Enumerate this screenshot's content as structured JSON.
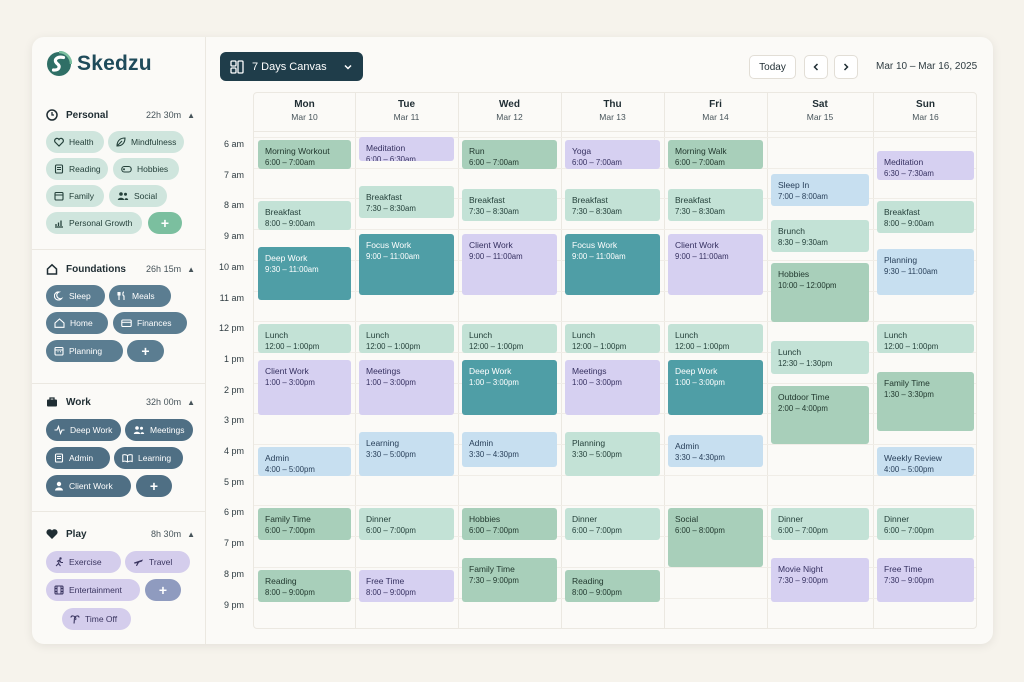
{
  "app": {
    "name": "Skedzu"
  },
  "sidebar": {
    "sections": [
      {
        "title": "Personal",
        "hours": "22h 30m",
        "chips": [
          "Health",
          "Mindfulness",
          "Reading",
          "Hobbies",
          "Family",
          "Social",
          "Personal Growth"
        ]
      },
      {
        "title": "Foundations",
        "hours": "26h 15m",
        "chips": [
          "Sleep",
          "Meals",
          "Home",
          "Finances",
          "Planning"
        ]
      },
      {
        "title": "Work",
        "hours": "32h 00m",
        "chips": [
          "Deep Work",
          "Meetings",
          "Admin",
          "Learning",
          "Client Work"
        ]
      },
      {
        "title": "Play",
        "hours": "8h 30m",
        "chips": [
          "Exercise",
          "Travel",
          "Entertainment",
          "Time Off"
        ]
      }
    ],
    "add_label": "+"
  },
  "toolbar": {
    "view_label": "7 Days Canvas",
    "today_label": "Today",
    "range_label": "Mar 10 – Mar 16, 2025"
  },
  "calendar": {
    "days": [
      {
        "name": "Mon",
        "date": "Mar 10"
      },
      {
        "name": "Tue",
        "date": "Mar 11"
      },
      {
        "name": "Wed",
        "date": "Mar 12"
      },
      {
        "name": "Thu",
        "date": "Mar 13"
      },
      {
        "name": "Fri",
        "date": "Mar 14"
      },
      {
        "name": "Sat",
        "date": "Mar 15"
      },
      {
        "name": "Sun",
        "date": "Mar 16"
      }
    ],
    "hours": [
      "6 am",
      "7 am",
      "8 am",
      "9 am",
      "10 am",
      "11 am",
      "12 pm",
      "1 pm",
      "2 pm",
      "3 pm",
      "4 pm",
      "5 pm",
      "6 pm",
      "7 pm",
      "8 pm",
      "9 pm"
    ],
    "events": [
      {
        "day": 0,
        "title": "Morning Workout",
        "time": "6:00 – 7:00am",
        "start": 6.0,
        "end": 7.0,
        "type": "sage"
      },
      {
        "day": 0,
        "title": "Breakfast",
        "time": "8:00 – 9:00am",
        "start": 8.0,
        "end": 9.0,
        "type": "mint"
      },
      {
        "day": 0,
        "title": "Deep Work",
        "time": "9:30 – 11:00am",
        "start": 9.5,
        "end": 11.3,
        "type": "teal"
      },
      {
        "day": 0,
        "title": "Lunch",
        "time": "12:00 – 1:00pm",
        "start": 12.0,
        "end": 13.0,
        "type": "mint"
      },
      {
        "day": 0,
        "title": "Client Work",
        "time": "1:00 – 3:00pm",
        "start": 13.15,
        "end": 15.0,
        "type": "lav"
      },
      {
        "day": 0,
        "title": "Admin",
        "time": "4:00 – 5:00pm",
        "start": 16.0,
        "end": 17.0,
        "type": "blue"
      },
      {
        "day": 0,
        "title": "Family Time",
        "time": "6:00 – 7:00pm",
        "start": 18.0,
        "end": 19.1,
        "type": "sage"
      },
      {
        "day": 0,
        "title": "Reading",
        "time": "8:00 – 9:00pm",
        "start": 20.0,
        "end": 21.1,
        "type": "sage"
      },
      {
        "day": 1,
        "title": "Meditation",
        "time": "6:00 – 6:30am",
        "start": 5.9,
        "end": 6.75,
        "type": "lav"
      },
      {
        "day": 1,
        "title": "Breakfast",
        "time": "7:30 – 8:30am",
        "start": 7.5,
        "end": 8.6,
        "type": "mint"
      },
      {
        "day": 1,
        "title": "Focus Work",
        "time": "9:00 – 11:00am",
        "start": 9.05,
        "end": 11.1,
        "type": "teal"
      },
      {
        "day": 1,
        "title": "Lunch",
        "time": "12:00 – 1:00pm",
        "start": 12.0,
        "end": 13.0,
        "type": "mint"
      },
      {
        "day": 1,
        "title": "Meetings",
        "time": "1:00 – 3:00pm",
        "start": 13.15,
        "end": 15.0,
        "type": "lav"
      },
      {
        "day": 1,
        "title": "Learning",
        "time": "3:30 – 5:00pm",
        "start": 15.5,
        "end": 17.0,
        "type": "blue"
      },
      {
        "day": 1,
        "title": "Dinner",
        "time": "6:00 – 7:00pm",
        "start": 18.0,
        "end": 19.1,
        "type": "mint"
      },
      {
        "day": 1,
        "title": "Free Time",
        "time": "8:00 – 9:00pm",
        "start": 20.0,
        "end": 21.1,
        "type": "lav"
      },
      {
        "day": 2,
        "title": "Run",
        "time": "6:00 – 7:00am",
        "start": 6.0,
        "end": 7.0,
        "type": "sage"
      },
      {
        "day": 2,
        "title": "Breakfast",
        "time": "7:30 – 8:30am",
        "start": 7.6,
        "end": 8.7,
        "type": "mint"
      },
      {
        "day": 2,
        "title": "Client Work",
        "time": "9:00 – 11:00am",
        "start": 9.05,
        "end": 11.1,
        "type": "lav"
      },
      {
        "day": 2,
        "title": "Lunch",
        "time": "12:00 – 1:00pm",
        "start": 12.0,
        "end": 13.0,
        "type": "mint"
      },
      {
        "day": 2,
        "title": "Deep Work",
        "time": "1:00 – 3:00pm",
        "start": 13.15,
        "end": 15.0,
        "type": "teal"
      },
      {
        "day": 2,
        "title": "Admin",
        "time": "3:30 – 4:30pm",
        "start": 15.5,
        "end": 16.7,
        "type": "blue"
      },
      {
        "day": 2,
        "title": "Hobbies",
        "time": "6:00 – 7:00pm",
        "start": 18.0,
        "end": 19.1,
        "type": "sage"
      },
      {
        "day": 2,
        "title": "Family Time",
        "time": "7:30 – 9:00pm",
        "start": 19.6,
        "end": 21.1,
        "type": "sage"
      },
      {
        "day": 3,
        "title": "Yoga",
        "time": "6:00 – 7:00am",
        "start": 6.0,
        "end": 7.0,
        "type": "lav"
      },
      {
        "day": 3,
        "title": "Breakfast",
        "time": "7:30 – 8:30am",
        "start": 7.6,
        "end": 8.7,
        "type": "mint"
      },
      {
        "day": 3,
        "title": "Focus Work",
        "time": "9:00 – 11:00am",
        "start": 9.05,
        "end": 11.1,
        "type": "teal"
      },
      {
        "day": 3,
        "title": "Lunch",
        "time": "12:00 – 1:00pm",
        "start": 12.0,
        "end": 13.0,
        "type": "mint"
      },
      {
        "day": 3,
        "title": "Meetings",
        "time": "1:00 – 3:00pm",
        "start": 13.15,
        "end": 15.0,
        "type": "lav"
      },
      {
        "day": 3,
        "title": "Planning",
        "time": "3:30 – 5:00pm",
        "start": 15.5,
        "end": 17.0,
        "type": "mint"
      },
      {
        "day": 3,
        "title": "Dinner",
        "time": "6:00 – 7:00pm",
        "start": 18.0,
        "end": 19.1,
        "type": "mint"
      },
      {
        "day": 3,
        "title": "Reading",
        "time": "8:00 – 9:00pm",
        "start": 20.0,
        "end": 21.1,
        "type": "sage"
      },
      {
        "day": 4,
        "title": "Morning Walk",
        "time": "6:00 – 7:00am",
        "start": 6.0,
        "end": 7.0,
        "type": "sage"
      },
      {
        "day": 4,
        "title": "Breakfast",
        "time": "7:30 – 8:30am",
        "start": 7.6,
        "end": 8.7,
        "type": "mint"
      },
      {
        "day": 4,
        "title": "Client Work",
        "time": "9:00 – 11:00am",
        "start": 9.05,
        "end": 11.1,
        "type": "lav"
      },
      {
        "day": 4,
        "title": "Lunch",
        "time": "12:00 – 1:00pm",
        "start": 12.0,
        "end": 13.0,
        "type": "mint"
      },
      {
        "day": 4,
        "title": "Deep Work",
        "time": "1:00 – 3:00pm",
        "start": 13.15,
        "end": 15.0,
        "type": "teal"
      },
      {
        "day": 4,
        "title": "Admin",
        "time": "3:30 – 4:30pm",
        "start": 15.6,
        "end": 16.7,
        "type": "blue"
      },
      {
        "day": 4,
        "title": "Social",
        "time": "6:00 – 8:00pm",
        "start": 18.0,
        "end": 20.0,
        "type": "sage"
      },
      {
        "day": 5,
        "title": "Sleep In",
        "time": "7:00 – 8:00am",
        "start": 7.1,
        "end": 8.2,
        "type": "blue"
      },
      {
        "day": 5,
        "title": "Brunch",
        "time": "8:30 – 9:30am",
        "start": 8.6,
        "end": 9.7,
        "type": "mint"
      },
      {
        "day": 5,
        "title": "Hobbies",
        "time": "10:00 – 12:00pm",
        "start": 10.0,
        "end": 12.0,
        "type": "sage"
      },
      {
        "day": 5,
        "title": "Lunch",
        "time": "12:30 – 1:30pm",
        "start": 12.55,
        "end": 13.7,
        "type": "mint"
      },
      {
        "day": 5,
        "title": "Outdoor Time",
        "time": "2:00 – 4:00pm",
        "start": 14.0,
        "end": 15.95,
        "type": "sage"
      },
      {
        "day": 5,
        "title": "Dinner",
        "time": "6:00 – 7:00pm",
        "start": 18.0,
        "end": 19.1,
        "type": "mint"
      },
      {
        "day": 5,
        "title": "Movie Night",
        "time": "7:30 – 9:00pm",
        "start": 19.6,
        "end": 21.1,
        "type": "lav"
      },
      {
        "day": 6,
        "title": "Meditation",
        "time": "6:30 – 7:30am",
        "start": 6.35,
        "end": 7.35,
        "type": "lav"
      },
      {
        "day": 6,
        "title": "Breakfast",
        "time": "8:00 – 9:00am",
        "start": 8.0,
        "end": 9.1,
        "type": "mint"
      },
      {
        "day": 6,
        "title": "Planning",
        "time": "9:30 – 11:00am",
        "start": 9.55,
        "end": 11.1,
        "type": "blue"
      },
      {
        "day": 6,
        "title": "Lunch",
        "time": "12:00 – 1:00pm",
        "start": 12.0,
        "end": 13.0,
        "type": "mint"
      },
      {
        "day": 6,
        "title": "Family Time",
        "time": "1:30 – 3:30pm",
        "start": 13.55,
        "end": 15.55,
        "type": "sage"
      },
      {
        "day": 6,
        "title": "Weekly Review",
        "time": "4:00 – 5:00pm",
        "start": 16.0,
        "end": 17.0,
        "type": "blue"
      },
      {
        "day": 6,
        "title": "Dinner",
        "time": "6:00 – 7:00pm",
        "start": 18.0,
        "end": 19.1,
        "type": "mint"
      },
      {
        "day": 6,
        "title": "Free Time",
        "time": "7:30 – 9:00pm",
        "start": 19.6,
        "end": 21.1,
        "type": "lav"
      }
    ]
  },
  "colors": {
    "primary": "#1f3d4a",
    "accent_teal": "#4f9ea6",
    "personal": "#cfe5dd",
    "foundations": "#5b7d91",
    "work": "#4f6f84",
    "play": "#d4cdec"
  }
}
